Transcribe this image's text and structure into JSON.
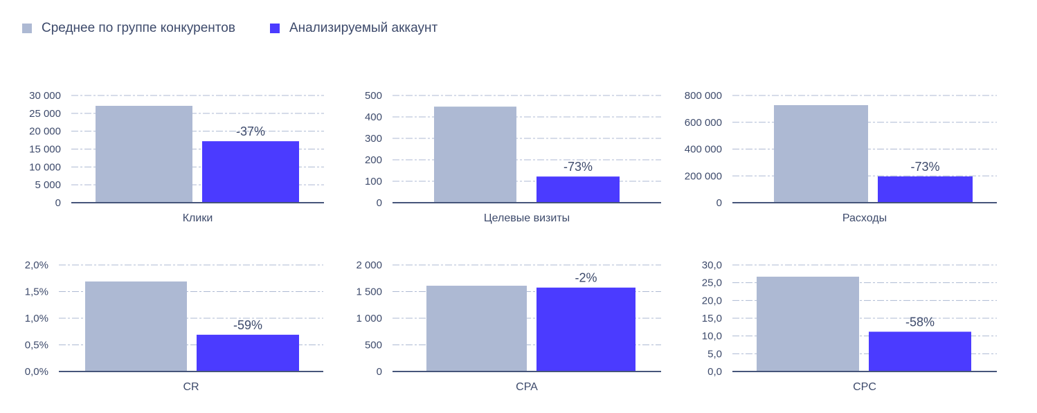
{
  "legend": [
    {
      "label": "Среднее по группе конкурентов",
      "color": "#adb9d3"
    },
    {
      "label": "Анализируемый аккаунт",
      "color": "#4b3bff"
    }
  ],
  "chart_data": [
    {
      "type": "bar",
      "category": "Клики",
      "series": [
        {
          "name": "Среднее по группе конкурентов",
          "value": 27100
        },
        {
          "name": "Анализируемый аккаунт",
          "value": 17200
        }
      ],
      "data_label": "-37%",
      "ylim": [
        0,
        30000
      ],
      "yticks": [
        "0",
        "5 000",
        "10 000",
        "15 000",
        "20 000",
        "25 000",
        "30 000"
      ],
      "grid": true
    },
    {
      "type": "bar",
      "category": "Целевые визиты",
      "series": [
        {
          "name": "Среднее по группе конкурентов",
          "value": 448
        },
        {
          "name": "Анализируемый аккаунт",
          "value": 122
        }
      ],
      "data_label": "-73%",
      "ylim": [
        0,
        500
      ],
      "yticks": [
        "0",
        "100",
        "200",
        "300",
        "400",
        "500"
      ],
      "grid": true
    },
    {
      "type": "bar",
      "category": "Расходы",
      "series": [
        {
          "name": "Среднее по группе конкурентов",
          "value": 728000
        },
        {
          "name": "Анализируемый аккаунт",
          "value": 196000
        }
      ],
      "data_label": "-73%",
      "ylim": [
        0,
        800000
      ],
      "yticks": [
        "0",
        "200 000",
        "400 000",
        "600 000",
        "800 000"
      ],
      "grid": true
    },
    {
      "type": "bar",
      "category": "CR",
      "series": [
        {
          "name": "Среднее по группе конкурентов",
          "value": 1.69
        },
        {
          "name": "Анализируемый аккаунт",
          "value": 0.69
        }
      ],
      "data_label": "-59%",
      "ylim": [
        0,
        2.0
      ],
      "yticks": [
        "0,0%",
        "0,5%",
        "1,0%",
        "1,5%",
        "2,0%"
      ],
      "grid": true
    },
    {
      "type": "bar",
      "category": "CPA",
      "series": [
        {
          "name": "Среднее по группе конкурентов",
          "value": 1610
        },
        {
          "name": "Анализируемый аккаунт",
          "value": 1575
        }
      ],
      "data_label": "-2%",
      "ylim": [
        0,
        2000
      ],
      "yticks": [
        "0",
        "500",
        "1 000",
        "1 500",
        "2 000"
      ],
      "grid": true
    },
    {
      "type": "bar",
      "category": "CPC",
      "series": [
        {
          "name": "Среднее по группе конкурентов",
          "value": 26.7
        },
        {
          "name": "Анализируемый аккаунт",
          "value": 11.2
        }
      ],
      "data_label": "-58%",
      "ylim": [
        0,
        30
      ],
      "yticks": [
        "0,0",
        "5,0",
        "10,0",
        "15,0",
        "20,0",
        "25,0",
        "30,0"
      ],
      "grid": true
    }
  ]
}
